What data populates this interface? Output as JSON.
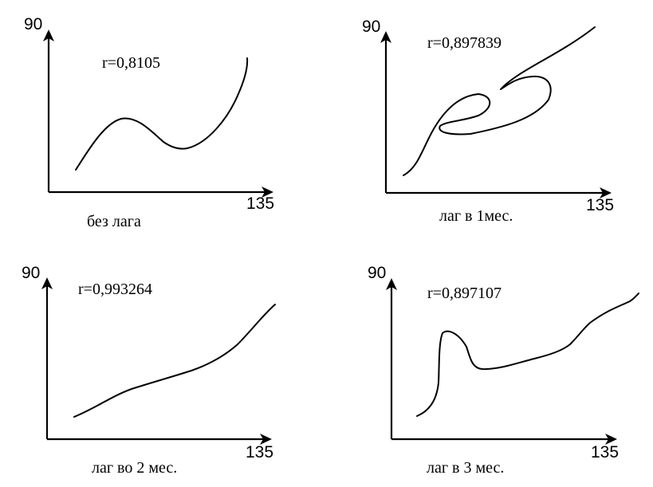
{
  "panels": [
    {
      "y_top_label": "90",
      "x_end_label": "135",
      "correlation": "r=0,8105",
      "caption": "без лага"
    },
    {
      "y_top_label": "90",
      "x_end_label": "135",
      "correlation": "r=0,897839",
      "caption": "лаг в 1мес."
    },
    {
      "y_top_label": "90",
      "x_end_label": "135",
      "correlation": "r=0,993264",
      "caption": "лаг во 2 мес."
    },
    {
      "y_top_label": "90",
      "x_end_label": "135",
      "correlation": "r=0,897107",
      "caption": "лаг в 3 мес."
    }
  ]
}
